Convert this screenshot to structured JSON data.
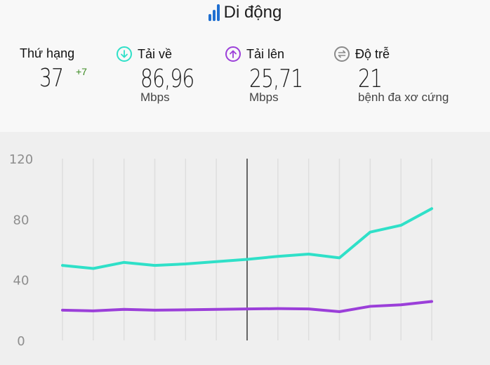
{
  "header": {
    "title": "Di động"
  },
  "stats": {
    "rank": {
      "label": "Thứ hạng",
      "value": "37",
      "change": "+7"
    },
    "download": {
      "label": "Tải về",
      "value": "86,96",
      "unit": "Mbps",
      "icon": "arrow-down-circle-icon",
      "color": "#2fe0c8"
    },
    "upload": {
      "label": "Tải lên",
      "value": "25,71",
      "unit": "Mbps",
      "icon": "arrow-up-circle-icon",
      "color": "#9b3fd9"
    },
    "latency": {
      "label": "Độ trễ",
      "value": "21",
      "unit": "bệnh đa xơ cứng",
      "icon": "latency-arrows-icon",
      "color": "#8a8a8a"
    }
  },
  "chart_data": {
    "type": "line",
    "title": "",
    "xlabel": "",
    "ylabel": "",
    "ylim": [
      0,
      120
    ],
    "yticks": [
      0,
      40,
      80,
      120
    ],
    "x": [
      1,
      2,
      3,
      4,
      5,
      6,
      7,
      8,
      9,
      10,
      11,
      12,
      13
    ],
    "grid": "vertical",
    "highlight_index": 6,
    "series": [
      {
        "color": "#2fe0c8",
        "values": [
          49.5,
          47.5,
          51.5,
          49.5,
          50.5,
          52,
          53.5,
          55.5,
          57,
          54.5,
          71.5,
          76,
          87
        ]
      },
      {
        "color": "#9b3fd9",
        "values": [
          20,
          19.5,
          20.5,
          20,
          20.2,
          20.5,
          20.8,
          21,
          20.8,
          19,
          22.5,
          23.5,
          25.7
        ]
      }
    ]
  }
}
